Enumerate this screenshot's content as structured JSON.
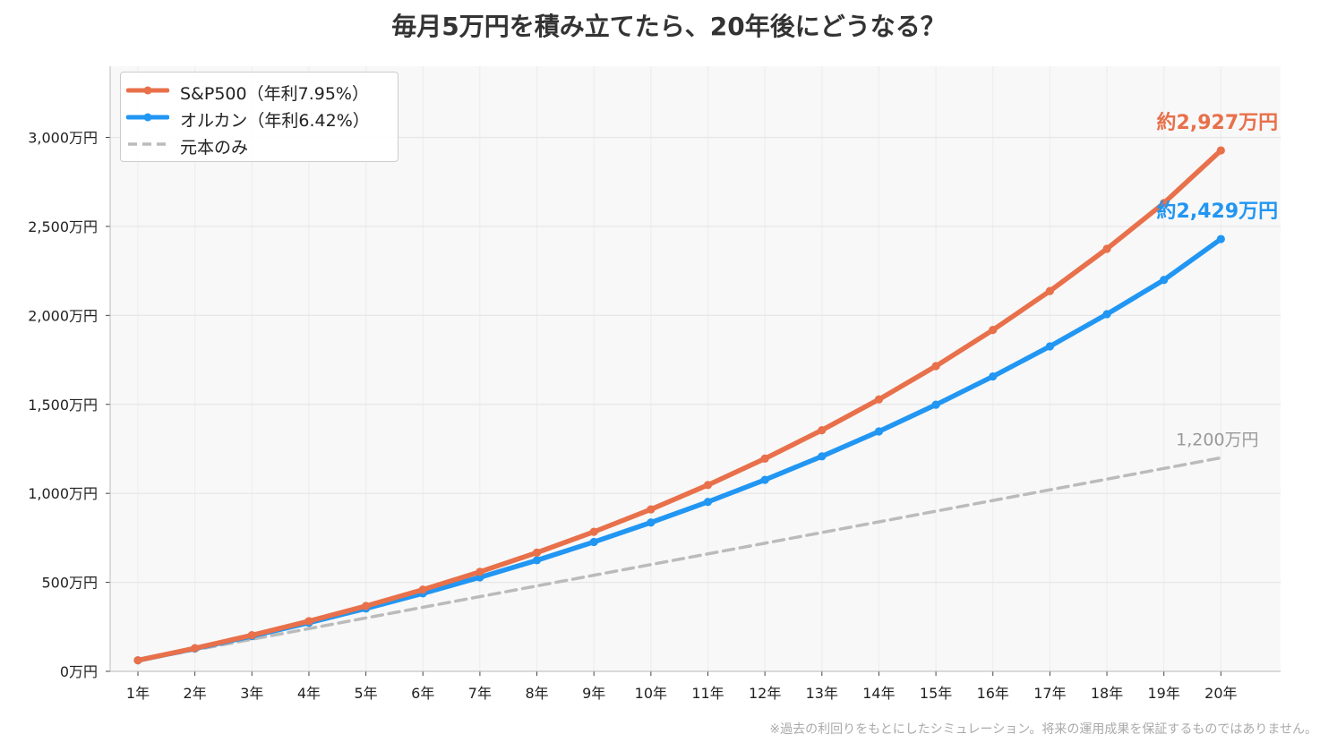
{
  "chart_data": {
    "type": "line",
    "title": "毎月5万円を積み立てたら、20年後にどうなる？",
    "xlabel": "",
    "ylabel": "",
    "categories": [
      "1年",
      "2年",
      "3年",
      "4年",
      "5年",
      "6年",
      "7年",
      "8年",
      "9年",
      "10年",
      "11年",
      "12年",
      "13年",
      "14年",
      "15年",
      "16年",
      "17年",
      "18年",
      "19年",
      "20年"
    ],
    "x": [
      1,
      2,
      3,
      4,
      5,
      6,
      7,
      8,
      9,
      10,
      11,
      12,
      13,
      14,
      15,
      16,
      17,
      18,
      19,
      20
    ],
    "ylim": [
      0,
      3400
    ],
    "yticks": [
      0,
      500,
      1000,
      1500,
      2000,
      2500,
      3000
    ],
    "ytick_labels": [
      "0万円",
      "500万円",
      "1,000万円",
      "1,500万円",
      "2,000万円",
      "2,500万円",
      "3,000万円"
    ],
    "grid": true,
    "legend": "top-left",
    "series": [
      {
        "name": "S&P500（年利7.95%）",
        "color": "#E8704A",
        "style": "solid-markers",
        "values": [
          62,
          130,
          203,
          282,
          367,
          459,
          559,
          667,
          784,
          910,
          1047,
          1195,
          1355,
          1528,
          1715,
          1918,
          2137,
          2374,
          2631,
          2927
        ],
        "end_label": "約2,927万円"
      },
      {
        "name": "オルカン（年利6.42%）",
        "color": "#2196F3",
        "style": "solid-markers",
        "values": [
          62,
          128,
          198,
          273,
          353,
          438,
          528,
          624,
          727,
          836,
          952,
          1076,
          1208,
          1348,
          1498,
          1657,
          1826,
          2007,
          2199,
          2429
        ],
        "end_label": "約2,429万円"
      },
      {
        "name": "元本のみ",
        "color": "#BBBBBB",
        "style": "dashed",
        "values": [
          60,
          120,
          180,
          240,
          300,
          360,
          420,
          480,
          540,
          600,
          660,
          720,
          780,
          840,
          900,
          960,
          1020,
          1080,
          1140,
          1200
        ],
        "end_label": "1,200万円"
      }
    ]
  },
  "footnote": "※過去の利回りをもとにしたシミュレーション。将来の運用成果を保証するものではありません。"
}
